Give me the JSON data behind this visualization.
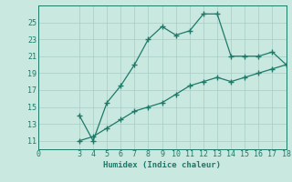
{
  "line1_x": [
    3,
    4,
    5,
    6,
    7,
    8,
    9,
    10,
    11,
    12,
    13,
    14,
    15,
    16,
    17,
    18
  ],
  "line1_y": [
    14.0,
    11.0,
    15.5,
    17.5,
    20.0,
    23.0,
    24.5,
    23.5,
    24.0,
    26.0,
    26.0,
    21.0,
    21.0,
    21.0,
    21.5,
    20.0
  ],
  "line2_x": [
    3,
    4,
    5,
    6,
    7,
    8,
    9,
    10,
    11,
    12,
    13,
    14,
    15,
    16,
    17,
    18
  ],
  "line2_y": [
    11.0,
    11.5,
    12.5,
    13.5,
    14.5,
    15.0,
    15.5,
    16.5,
    17.5,
    18.0,
    18.5,
    18.0,
    18.5,
    19.0,
    19.5,
    20.0
  ],
  "line_color": "#1e7a68",
  "bg_color": "#c8e8e0",
  "grid_color": "#a8ccc4",
  "xlabel": "Humidex (Indice chaleur)",
  "xlim": [
    0,
    18
  ],
  "ylim": [
    10,
    27
  ],
  "xticks": [
    0,
    3,
    4,
    5,
    6,
    7,
    8,
    9,
    10,
    11,
    12,
    13,
    14,
    15,
    16,
    17,
    18
  ],
  "yticks": [
    11,
    13,
    15,
    17,
    19,
    21,
    23,
    25
  ],
  "xlabel_fontsize": 6.5,
  "tick_fontsize": 6.0,
  "marker": "+",
  "marker_size": 4,
  "line_width": 0.9
}
